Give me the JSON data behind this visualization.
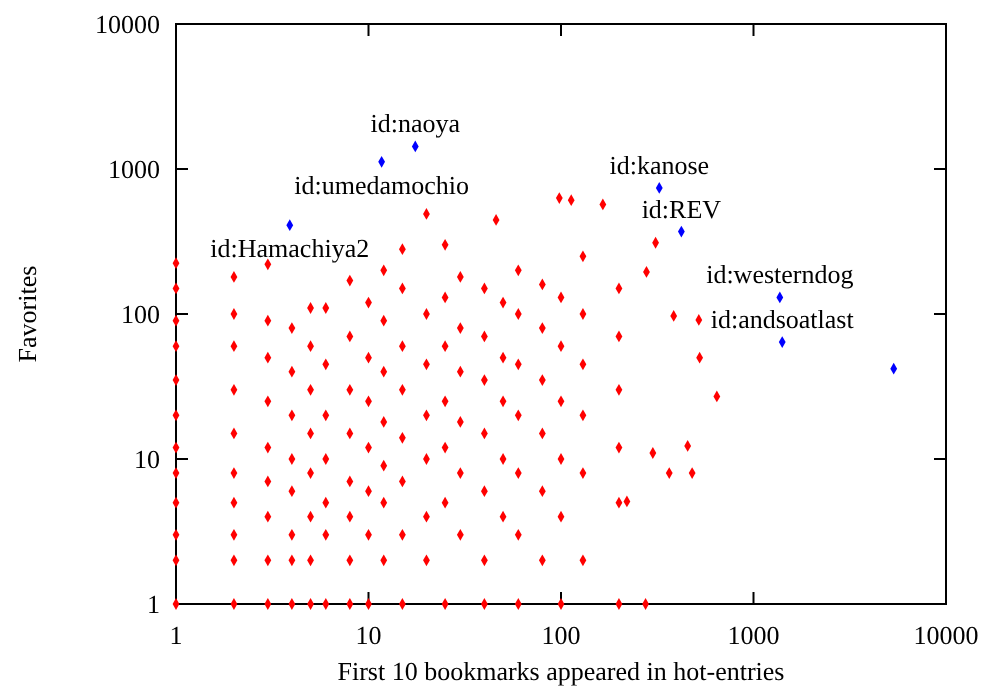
{
  "chart_data": {
    "type": "scatter",
    "xlabel": "First 10 bookmarks appeared in hot-entries",
    "ylabel": "Favorites",
    "log": "xy",
    "xlim": [
      1,
      10000
    ],
    "ylim": [
      1,
      10000
    ],
    "xticks": [
      1,
      10,
      100,
      1000,
      10000
    ],
    "yticks": [
      1,
      10,
      100,
      1000,
      10000
    ],
    "grid": false,
    "marker": "diamond",
    "series": [
      {
        "color": "#ff0000",
        "x": [
          1,
          1,
          1,
          1,
          1,
          1,
          1,
          1,
          1,
          1,
          1,
          1,
          2,
          2,
          2,
          2,
          2,
          2,
          2,
          2,
          2,
          2,
          3,
          3,
          3,
          3,
          3,
          3,
          3,
          3,
          3,
          4,
          4,
          4,
          4,
          4,
          4,
          4,
          4,
          5,
          5,
          5,
          5,
          5,
          5,
          5,
          5,
          6,
          6,
          6,
          6,
          6,
          6,
          6,
          8,
          8,
          8,
          8,
          8,
          8,
          8,
          8,
          10,
          10,
          10,
          10,
          10,
          10,
          10,
          12,
          12,
          12,
          12,
          12,
          12,
          12,
          15,
          15,
          15,
          15,
          15,
          15,
          15,
          15,
          20,
          20,
          20,
          20,
          20,
          20,
          20,
          25,
          25,
          25,
          25,
          25,
          25,
          25,
          30,
          30,
          30,
          30,
          30,
          30,
          40,
          40,
          40,
          40,
          40,
          40,
          40,
          46,
          50,
          50,
          50,
          50,
          50,
          60,
          60,
          60,
          60,
          60,
          60,
          60,
          80,
          80,
          80,
          80,
          80,
          80,
          98,
          113,
          165,
          100,
          100,
          100,
          100,
          100,
          100,
          130,
          130,
          130,
          130,
          130,
          130,
          200,
          200,
          200,
          200,
          200,
          200,
          220,
          275,
          278,
          310,
          300,
          365,
          385,
          455,
          480,
          520,
          525,
          645
        ],
        "values": [
          1,
          2,
          3,
          5,
          8,
          12,
          20,
          35,
          60,
          90,
          150,
          224,
          1,
          2,
          3,
          5,
          8,
          15,
          30,
          60,
          100,
          180,
          1,
          2,
          4,
          7,
          12,
          25,
          50,
          90,
          220,
          1,
          2,
          3,
          6,
          10,
          20,
          40,
          80,
          1,
          2,
          4,
          8,
          15,
          30,
          60,
          110,
          1,
          3,
          5,
          10,
          20,
          45,
          110,
          1,
          2,
          4,
          7,
          15,
          30,
          70,
          170,
          1,
          3,
          6,
          12,
          25,
          50,
          120,
          2,
          5,
          9,
          18,
          40,
          90,
          200,
          1,
          3,
          7,
          14,
          30,
          60,
          150,
          280,
          2,
          4,
          10,
          20,
          45,
          100,
          490,
          1,
          5,
          12,
          25,
          60,
          130,
          300,
          3,
          8,
          18,
          40,
          80,
          180,
          1,
          2,
          6,
          15,
          35,
          70,
          150,
          445,
          4,
          10,
          25,
          50,
          120,
          1,
          3,
          8,
          20,
          45,
          100,
          200,
          2,
          6,
          15,
          35,
          80,
          160,
          630,
          610,
          570,
          1,
          4,
          10,
          25,
          60,
          130,
          2,
          8,
          20,
          45,
          100,
          250,
          1,
          5,
          12,
          30,
          70,
          150,
          5.1,
          1,
          195,
          310,
          11,
          8,
          97,
          12.3,
          8,
          91,
          50,
          27
        ]
      },
      {
        "color": "#0000ff",
        "x": [
          17.5,
          11.7,
          3.9,
          324,
          422,
          1370,
          1410,
          5350
        ],
        "values": [
          1430,
          1120,
          410,
          740,
          370,
          130,
          64,
          42
        ]
      }
    ],
    "annotations": [
      {
        "text": "id:naoya",
        "x": 17.5,
        "y": 1430
      },
      {
        "text": "id:umedamochio",
        "x": 11.7,
        "y": 1120
      },
      {
        "text": "id:Hamachiya2",
        "x": 3.9,
        "y": 410
      },
      {
        "text": "id:kanose",
        "x": 324,
        "y": 740
      },
      {
        "text": "id:REV",
        "x": 422,
        "y": 370
      },
      {
        "text": "id:westerndog",
        "x": 1370,
        "y": 130
      },
      {
        "text": "id:andsoatlast",
        "x": 1410,
        "y": 64
      }
    ]
  }
}
